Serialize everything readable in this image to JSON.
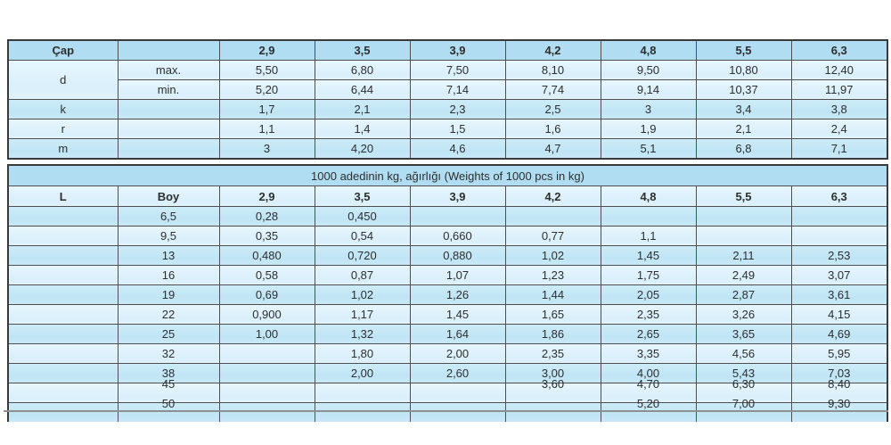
{
  "palette": {
    "band_dark": "#b0ddf1",
    "band_mid": "#c4e8f6",
    "band_light": "#ddf1fb",
    "grid_border": "#4f4f4f",
    "outer_border": "#3a3a3a",
    "bottom_rule": "#8f8f8f",
    "text": "#2e2e2e"
  },
  "table1": {
    "col_headers": [
      "Çap",
      "",
      "2,9",
      "3,5",
      "3,9",
      "4,2",
      "4,8",
      "5,5",
      "6,3"
    ],
    "rows": [
      {
        "label": "d",
        "rowspan": 2,
        "sub": "max.",
        "band": "light",
        "values": [
          "5,50",
          "6,80",
          "7,50",
          "8,10",
          "9,50",
          "10,80",
          "12,40"
        ]
      },
      {
        "sub": "min.",
        "band": "light",
        "values": [
          "5,20",
          "6,44",
          "7,14",
          "7,74",
          "9,14",
          "10,37",
          "11,97"
        ]
      },
      {
        "label": "k",
        "sub": "",
        "band": "mid",
        "values": [
          "1,7",
          "2,1",
          "2,3",
          "2,5",
          "3",
          "3,4",
          "3,8"
        ]
      },
      {
        "label": "r",
        "sub": "",
        "band": "light",
        "values": [
          "1,1",
          "1,4",
          "1,5",
          "1,6",
          "1,9",
          "2,1",
          "2,4"
        ]
      },
      {
        "label": "m",
        "sub": "",
        "band": "mid",
        "values": [
          "3",
          "4,20",
          "4,6",
          "4,7",
          "5,1",
          "6,8",
          "7,1"
        ]
      }
    ]
  },
  "table2": {
    "title": "1000 adedinin kg, ağırlığı  (Weights of 1000 pcs in kg)",
    "col_headers": [
      "L",
      "Boy",
      "2,9",
      "3,5",
      "3,9",
      "4,2",
      "4,8",
      "5,5",
      "6,3"
    ],
    "rows": [
      {
        "boy": "6,5",
        "values": [
          "0,28",
          "0,450",
          "",
          "",
          "",
          "",
          ""
        ]
      },
      {
        "boy": "9,5",
        "values": [
          "0,35",
          "0,54",
          "0,660",
          "0,77",
          "1,1",
          "",
          ""
        ]
      },
      {
        "boy": "13",
        "values": [
          "0,480",
          "0,720",
          "0,880",
          "1,02",
          "1,45",
          "2,11",
          "2,53"
        ]
      },
      {
        "boy": "16",
        "values": [
          "0,58",
          "0,87",
          "1,07",
          "1,23",
          "1,75",
          "2,49",
          "3,07"
        ]
      },
      {
        "boy": "19",
        "values": [
          "0,69",
          "1,02",
          "1,26",
          "1,44",
          "2,05",
          "2,87",
          "3,61"
        ]
      },
      {
        "boy": "22",
        "values": [
          "0,900",
          "1,17",
          "1,45",
          "1,65",
          "2,35",
          "3,26",
          "4,15"
        ]
      },
      {
        "boy": "25",
        "values": [
          "1,00",
          "1,32",
          "1,64",
          "1,86",
          "2,65",
          "3,65",
          "4,69"
        ]
      },
      {
        "boy": "32",
        "values": [
          "",
          "1,80",
          "2,00",
          "2,35",
          "3,35",
          "4,56",
          "5,95"
        ]
      },
      {
        "boy": "38",
        "values": [
          "",
          "2,00",
          "2,60",
          "3,00",
          "4,00",
          "5,43",
          "7,03"
        ]
      },
      {
        "boy": "45",
        "shifted": true,
        "values": [
          "",
          "",
          "",
          "3,60",
          "4,70",
          "6,30",
          "8,40"
        ]
      },
      {
        "boy": "50",
        "shifted": true,
        "values": [
          "",
          "",
          "",
          "",
          "5,20",
          "7,00",
          "9,30"
        ]
      }
    ]
  }
}
